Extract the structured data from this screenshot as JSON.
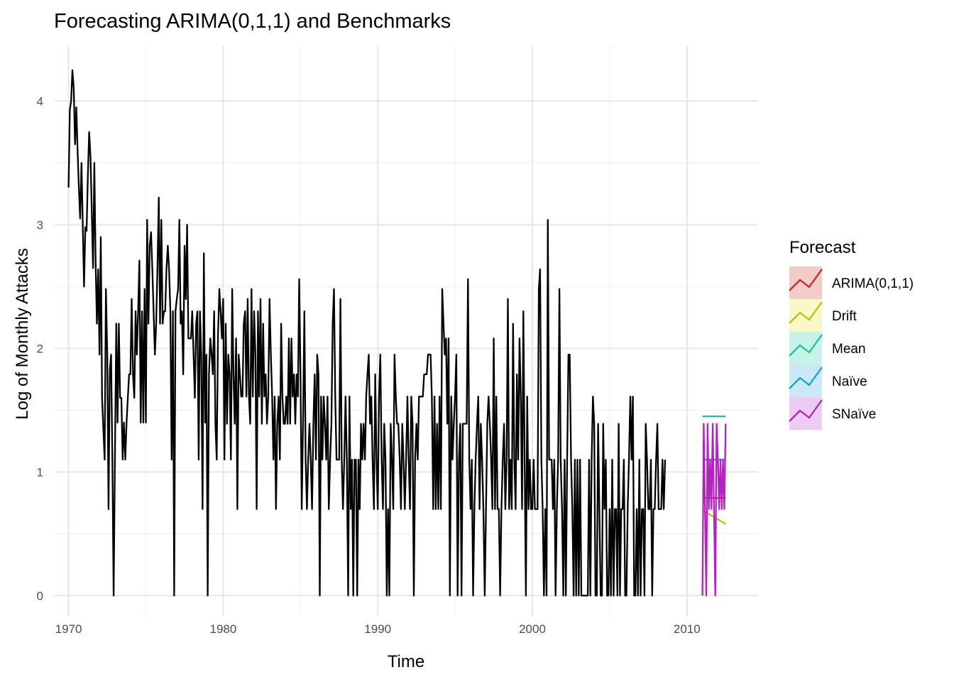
{
  "chart_data": {
    "type": "line",
    "title": "Forecasting ARIMA(0,1,1) and Benchmarks",
    "xlabel": "Time",
    "ylabel": "Log of Monthly Attacks",
    "xlim": [
      1969.1,
      2014.6
    ],
    "ylim": [
      -0.17,
      4.45
    ],
    "x_ticks": [
      1970,
      1980,
      1990,
      2000,
      2010
    ],
    "x_tick_labels": [
      "1970",
      "1980",
      "1990",
      "2000",
      "2010"
    ],
    "y_ticks": [
      0,
      1,
      2,
      3,
      4
    ],
    "y_tick_labels": [
      "0",
      "1",
      "2",
      "3",
      "4"
    ],
    "grid": true,
    "legend_position": "right",
    "legend_title": "Forecast",
    "history": {
      "start": 1970.0,
      "frequency": 12,
      "color": "#000000",
      "values": [
        3.3,
        3.93,
        4.0,
        4.25,
        4.1,
        3.65,
        3.95,
        3.6,
        3.3,
        3.05,
        3.5,
        3.0,
        2.5,
        2.98,
        2.95,
        3.4,
        3.75,
        3.55,
        3.1,
        2.65,
        3.5,
        2.7,
        2.2,
        2.64,
        1.95,
        2.9,
        1.6,
        1.35,
        1.1,
        2.48,
        1.95,
        0.7,
        1.82,
        1.95,
        1.1,
        0.0,
        1.1,
        2.2,
        1.4,
        2.2,
        1.6,
        1.6,
        1.1,
        1.4,
        1.1,
        1.4,
        1.6,
        1.79,
        1.79,
        2.4,
        1.79,
        1.6,
        2.3,
        1.95,
        2.3,
        2.71,
        1.4,
        2.3,
        1.4,
        2.48,
        1.4,
        3.04,
        2.2,
        2.83,
        2.94,
        2.64,
        2.3,
        1.95,
        2.2,
        2.64,
        3.22,
        2.2,
        3.04,
        2.2,
        2.3,
        2.3,
        2.64,
        2.83,
        2.64,
        2.3,
        1.1,
        2.3,
        0.0,
        2.3,
        2.4,
        2.48,
        3.04,
        2.2,
        2.3,
        1.79,
        2.83,
        2.4,
        3.0,
        2.08,
        2.08,
        2.08,
        2.3,
        1.95,
        1.6,
        2.2,
        2.3,
        1.1,
        2.3,
        1.95,
        0.7,
        2.77,
        1.4,
        1.95,
        0.0,
        1.79,
        2.08,
        1.95,
        1.79,
        2.3,
        1.39,
        1.1,
        2.1,
        2.48,
        2.3,
        2.08,
        2.4,
        1.1,
        2.2,
        1.39,
        1.95,
        1.79,
        1.1,
        2.48,
        1.79,
        1.39,
        2.08,
        0.7,
        1.95,
        1.79,
        1.61,
        1.61,
        2.2,
        2.3,
        1.61,
        2.4,
        1.61,
        1.39,
        2.48,
        1.61,
        2.3,
        1.95,
        0.7,
        2.3,
        1.61,
        2.4,
        1.39,
        2.2,
        1.61,
        1.79,
        1.39,
        1.61,
        2.4,
        1.95,
        1.61,
        1.1,
        1.61,
        0.7,
        1.39,
        1.61,
        1.1,
        2.2,
        1.61,
        1.39,
        1.39,
        1.61,
        1.39,
        2.08,
        1.39,
        2.08,
        1.61,
        1.79,
        1.39,
        1.79,
        1.61,
        2.56,
        1.79,
        0.7,
        1.39,
        2.3,
        1.1,
        0.7,
        1.1,
        1.39,
        1.1,
        0.7,
        1.39,
        1.79,
        1.1,
        1.95,
        1.79,
        0.0,
        1.61,
        1.1,
        1.61,
        1.39,
        1.1,
        1.61,
        0.7,
        1.1,
        1.39,
        2.2,
        2.48,
        1.61,
        1.1,
        1.1,
        1.1,
        2.4,
        1.1,
        0.7,
        1.1,
        1.61,
        1.1,
        0.0,
        1.61,
        0.7,
        1.1,
        0.0,
        1.1,
        1.1,
        0.0,
        1.1,
        0.7,
        1.39,
        1.1,
        1.39,
        1.1,
        1.61,
        1.79,
        1.95,
        1.39,
        1.61,
        1.1,
        0.7,
        1.79,
        1.1,
        0.7,
        1.61,
        1.95,
        1.1,
        0.7,
        1.39,
        1.1,
        0.0,
        0.7,
        0.0,
        1.39,
        1.1,
        0.7,
        1.95,
        1.61,
        1.39,
        1.39,
        1.1,
        0.7,
        1.39,
        1.1,
        0.7,
        1.1,
        1.61,
        1.1,
        0.7,
        1.61,
        1.39,
        0.0,
        1.1,
        1.39,
        1.1,
        1.61,
        1.61,
        1.61,
        1.61,
        1.79,
        1.79,
        1.79,
        1.95,
        1.95,
        1.95,
        1.61,
        0.7,
        1.61,
        0.7,
        1.39,
        0.7,
        1.61,
        0.7,
        2.48,
        2.2,
        1.95,
        2.08,
        1.39,
        2.08,
        0.0,
        1.61,
        1.1,
        1.39,
        1.61,
        1.95,
        0.0,
        1.1,
        1.39,
        0.0,
        1.39,
        1.39,
        1.39,
        1.39,
        2.56,
        1.1,
        0.7,
        1.1,
        0.0,
        0.7,
        1.1,
        1.39,
        1.61,
        0.7,
        1.39,
        1.1,
        0.7,
        0.0,
        0.7,
        1.39,
        1.61,
        1.39,
        1.1,
        0.7,
        2.08,
        0.7,
        1.61,
        0.7,
        0.7,
        0.0,
        0.7,
        1.1,
        1.39,
        0.7,
        1.1,
        2.4,
        0.7,
        1.1,
        0.7,
        2.2,
        1.1,
        0.7,
        1.79,
        1.1,
        2.08,
        1.61,
        0.7,
        2.3,
        1.1,
        0.0,
        1.61,
        0.7,
        1.1,
        0.7,
        0.7,
        1.1,
        0.7,
        0.7,
        0.7,
        2.48,
        2.64,
        1.1,
        0.7,
        0.0,
        0.7,
        0.0,
        3.04,
        1.1,
        1.1,
        1.1,
        0.7,
        1.1,
        0.0,
        0.7,
        1.1,
        2.48,
        1.1,
        0.7,
        0.0,
        1.1,
        0.0,
        1.1,
        1.95,
        1.95,
        1.1,
        0.7,
        0.0,
        1.1,
        0.0,
        1.1,
        0.0,
        1.1,
        0.0,
        0.0,
        0.0,
        0.0,
        0.0,
        0.0,
        1.1,
        0.0,
        1.1,
        1.61,
        1.39,
        0.0,
        0.0,
        1.39,
        0.7,
        0.0,
        0.0,
        1.39,
        0.7,
        1.1,
        0.0,
        0.0,
        0.7,
        0.0,
        1.1,
        0.0,
        0.7,
        0.7,
        0.0,
        1.39,
        0.0,
        0.7,
        0.7,
        1.1,
        0.0,
        0.0,
        0.7,
        1.1,
        1.61,
        1.1,
        1.61,
        0.0,
        0.0,
        0.7,
        0.0,
        1.1,
        0.0,
        0.7,
        0.7,
        0.0,
        1.39,
        1.1,
        0.7,
        0.7,
        1.1,
        0.0,
        0.7,
        0.7,
        1.1,
        1.39,
        0.7,
        0.7,
        0.7,
        1.1,
        0.7,
        1.1
      ]
    },
    "series": [
      {
        "name": "ARIMA(0,1,1)",
        "color": "#C32A23",
        "fill": "#F3CCC8",
        "x": [
          2011.0,
          2012.5
        ],
        "values": [
          0.79,
          0.79
        ]
      },
      {
        "name": "Drift",
        "color": "#BFBF00",
        "fill": "#F9F8C9",
        "x": [
          2011.0,
          2012.5
        ],
        "values": [
          0.69,
          0.58
        ]
      },
      {
        "name": "Mean",
        "color": "#1DC39A",
        "fill": "#C6F3E7",
        "x": [
          2011.0,
          2012.5
        ],
        "values": [
          1.45,
          1.45
        ]
      },
      {
        "name": "Naïve",
        "color": "#17A2C7",
        "fill": "#CAE8F6",
        "x": [
          2011.0,
          2012.5
        ],
        "values": [
          1.1,
          1.1
        ]
      },
      {
        "name": "SNaïve",
        "color": "#B620C4",
        "fill": "#EDCBF2",
        "start": 2011.0,
        "frequency": 12,
        "values": [
          0.0,
          1.39,
          0.7,
          0.0,
          1.39,
          0.7,
          1.1,
          0.7,
          1.39,
          0.7,
          0.0,
          1.39,
          1.1,
          0.7,
          1.1,
          0.7,
          1.1,
          0.7,
          1.39
        ]
      }
    ]
  }
}
